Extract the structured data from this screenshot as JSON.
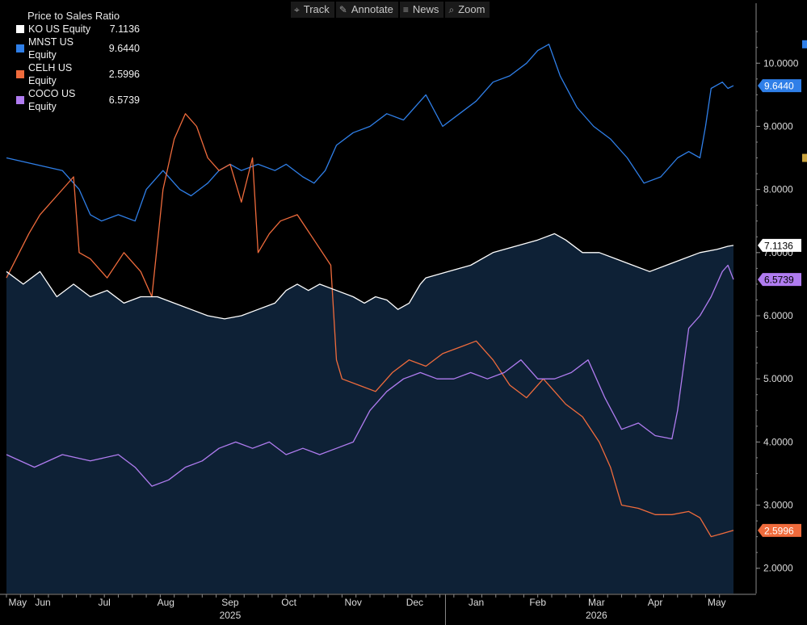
{
  "toolbar": {
    "items": [
      {
        "label": "Track",
        "icon": "crosshair-icon",
        "glyph": "⌖"
      },
      {
        "label": "Annotate",
        "icon": "pencil-icon",
        "glyph": "✎"
      },
      {
        "label": "News",
        "icon": "news-icon",
        "glyph": "≡"
      },
      {
        "label": "Zoom",
        "icon": "magnifier-icon",
        "glyph": "⌕"
      }
    ]
  },
  "chart_data": {
    "type": "line",
    "title": "Price to Sales Ratio",
    "ylim": [
      1.6,
      10.95
    ],
    "y_ticks": [
      "2.0000",
      "3.0000",
      "4.0000",
      "5.0000",
      "6.0000",
      "7.0000",
      "8.0000",
      "9.0000",
      "10.0000"
    ],
    "x_month_labels": [
      "May",
      "Jun",
      "Jul",
      "Aug",
      "Sep",
      "Oct",
      "Nov",
      "Dec",
      "Jan",
      "Feb",
      "Mar",
      "Apr",
      "May"
    ],
    "x_year_labels": [
      "2025",
      "2026"
    ],
    "grid": false,
    "legend_position": "top-left",
    "colors": {
      "background": "#000000",
      "area_fill": "#0e2136",
      "axis": "#8a8a8a",
      "tick_text": "#dcdcdc"
    },
    "series": [
      {
        "name": "KO US Equity",
        "last_label": "7.1136",
        "last": 7.1136,
        "color": "#ffffff",
        "fill": true,
        "points": [
          [
            0,
            6.7
          ],
          [
            6,
            6.5
          ],
          [
            12,
            6.7
          ],
          [
            18,
            6.3
          ],
          [
            24,
            6.5
          ],
          [
            30,
            6.3
          ],
          [
            36,
            6.4
          ],
          [
            42,
            6.2
          ],
          [
            48,
            6.3
          ],
          [
            54,
            6.3
          ],
          [
            60,
            6.2
          ],
          [
            66,
            6.1
          ],
          [
            72,
            6.0
          ],
          [
            78,
            5.95
          ],
          [
            84,
            6.0
          ],
          [
            90,
            6.1
          ],
          [
            96,
            6.2
          ],
          [
            100,
            6.4
          ],
          [
            104,
            6.5
          ],
          [
            108,
            6.4
          ],
          [
            112,
            6.5
          ],
          [
            118,
            6.4
          ],
          [
            124,
            6.3
          ],
          [
            128,
            6.2
          ],
          [
            132,
            6.3
          ],
          [
            136,
            6.25
          ],
          [
            140,
            6.1
          ],
          [
            144,
            6.2
          ],
          [
            148,
            6.5
          ],
          [
            150,
            6.6
          ],
          [
            158,
            6.7
          ],
          [
            166,
            6.8
          ],
          [
            174,
            7.0
          ],
          [
            182,
            7.1
          ],
          [
            190,
            7.2
          ],
          [
            196,
            7.3
          ],
          [
            200,
            7.2
          ],
          [
            206,
            7.0
          ],
          [
            212,
            7.0
          ],
          [
            218,
            6.9
          ],
          [
            224,
            6.8
          ],
          [
            230,
            6.7
          ],
          [
            236,
            6.8
          ],
          [
            242,
            6.9
          ],
          [
            248,
            7.0
          ],
          [
            254,
            7.05
          ],
          [
            258,
            7.1
          ],
          [
            260,
            7.1136
          ]
        ]
      },
      {
        "name": "MNST US Equity",
        "last_label": "9.6440",
        "last": 9.644,
        "color": "#2f7fe8",
        "fill": false,
        "points": [
          [
            0,
            8.5
          ],
          [
            10,
            8.4
          ],
          [
            20,
            8.3
          ],
          [
            26,
            8.0
          ],
          [
            30,
            7.6
          ],
          [
            34,
            7.5
          ],
          [
            40,
            7.6
          ],
          [
            46,
            7.5
          ],
          [
            50,
            8.0
          ],
          [
            56,
            8.3
          ],
          [
            62,
            8.0
          ],
          [
            66,
            7.9
          ],
          [
            72,
            8.1
          ],
          [
            76,
            8.3
          ],
          [
            80,
            8.4
          ],
          [
            84,
            8.3
          ],
          [
            90,
            8.4
          ],
          [
            96,
            8.3
          ],
          [
            100,
            8.4
          ],
          [
            106,
            8.2
          ],
          [
            110,
            8.1
          ],
          [
            114,
            8.3
          ],
          [
            118,
            8.7
          ],
          [
            124,
            8.9
          ],
          [
            130,
            9.0
          ],
          [
            136,
            9.2
          ],
          [
            142,
            9.1
          ],
          [
            150,
            9.5
          ],
          [
            156,
            9.0
          ],
          [
            162,
            9.2
          ],
          [
            168,
            9.4
          ],
          [
            174,
            9.7
          ],
          [
            180,
            9.8
          ],
          [
            186,
            10.0
          ],
          [
            190,
            10.2
          ],
          [
            194,
            10.3
          ],
          [
            198,
            9.8
          ],
          [
            204,
            9.3
          ],
          [
            210,
            9.0
          ],
          [
            216,
            8.8
          ],
          [
            222,
            8.5
          ],
          [
            228,
            8.1
          ],
          [
            234,
            8.2
          ],
          [
            240,
            8.5
          ],
          [
            244,
            8.6
          ],
          [
            248,
            8.5
          ],
          [
            250,
            9.0
          ],
          [
            252,
            9.6
          ],
          [
            256,
            9.7
          ],
          [
            258,
            9.6
          ],
          [
            260,
            9.644
          ]
        ]
      },
      {
        "name": "CELH US Equity",
        "last_label": "2.5996",
        "last": 2.5996,
        "color": "#ef6b3c",
        "fill": false,
        "points": [
          [
            0,
            6.6
          ],
          [
            8,
            7.3
          ],
          [
            12,
            7.6
          ],
          [
            18,
            7.9
          ],
          [
            24,
            8.2
          ],
          [
            26,
            7.0
          ],
          [
            30,
            6.9
          ],
          [
            36,
            6.6
          ],
          [
            42,
            7.0
          ],
          [
            48,
            6.7
          ],
          [
            52,
            6.3
          ],
          [
            56,
            8.0
          ],
          [
            60,
            8.8
          ],
          [
            64,
            9.2
          ],
          [
            68,
            9.0
          ],
          [
            72,
            8.5
          ],
          [
            76,
            8.3
          ],
          [
            80,
            8.4
          ],
          [
            84,
            7.8
          ],
          [
            88,
            8.5
          ],
          [
            90,
            7.0
          ],
          [
            94,
            7.3
          ],
          [
            98,
            7.5
          ],
          [
            104,
            7.6
          ],
          [
            110,
            7.2
          ],
          [
            116,
            6.8
          ],
          [
            118,
            5.3
          ],
          [
            120,
            5.0
          ],
          [
            126,
            4.9
          ],
          [
            132,
            4.8
          ],
          [
            138,
            5.1
          ],
          [
            144,
            5.3
          ],
          [
            150,
            5.2
          ],
          [
            156,
            5.4
          ],
          [
            162,
            5.5
          ],
          [
            168,
            5.6
          ],
          [
            174,
            5.3
          ],
          [
            180,
            4.9
          ],
          [
            186,
            4.7
          ],
          [
            192,
            5.0
          ],
          [
            196,
            4.8
          ],
          [
            200,
            4.6
          ],
          [
            206,
            4.4
          ],
          [
            212,
            4.0
          ],
          [
            216,
            3.6
          ],
          [
            220,
            3.0
          ],
          [
            226,
            2.95
          ],
          [
            232,
            2.85
          ],
          [
            238,
            2.85
          ],
          [
            244,
            2.9
          ],
          [
            248,
            2.8
          ],
          [
            252,
            2.5
          ],
          [
            256,
            2.55
          ],
          [
            260,
            2.5996
          ]
        ]
      },
      {
        "name": "COCO US Equity",
        "last_label": "6.5739",
        "last": 6.5739,
        "color": "#b07cf0",
        "fill": false,
        "points": [
          [
            0,
            3.8
          ],
          [
            10,
            3.6
          ],
          [
            20,
            3.8
          ],
          [
            30,
            3.7
          ],
          [
            40,
            3.8
          ],
          [
            46,
            3.6
          ],
          [
            52,
            3.3
          ],
          [
            58,
            3.4
          ],
          [
            64,
            3.6
          ],
          [
            70,
            3.7
          ],
          [
            76,
            3.9
          ],
          [
            82,
            4.0
          ],
          [
            88,
            3.9
          ],
          [
            94,
            4.0
          ],
          [
            100,
            3.8
          ],
          [
            106,
            3.9
          ],
          [
            112,
            3.8
          ],
          [
            118,
            3.9
          ],
          [
            124,
            4.0
          ],
          [
            130,
            4.5
          ],
          [
            136,
            4.8
          ],
          [
            142,
            5.0
          ],
          [
            148,
            5.1
          ],
          [
            154,
            5.0
          ],
          [
            160,
            5.0
          ],
          [
            166,
            5.1
          ],
          [
            172,
            5.0
          ],
          [
            178,
            5.1
          ],
          [
            184,
            5.3
          ],
          [
            190,
            5.0
          ],
          [
            196,
            5.0
          ],
          [
            202,
            5.1
          ],
          [
            208,
            5.3
          ],
          [
            214,
            4.7
          ],
          [
            220,
            4.2
          ],
          [
            226,
            4.3
          ],
          [
            232,
            4.1
          ],
          [
            238,
            4.05
          ],
          [
            240,
            4.5
          ],
          [
            244,
            5.8
          ],
          [
            248,
            6.0
          ],
          [
            252,
            6.3
          ],
          [
            256,
            6.7
          ],
          [
            258,
            6.8
          ],
          [
            260,
            6.5739
          ]
        ]
      }
    ]
  },
  "right_strip": [
    {
      "color": "#2f7fe8",
      "value": 10.3
    },
    {
      "color": "#c8a23c",
      "value": 8.5
    }
  ]
}
